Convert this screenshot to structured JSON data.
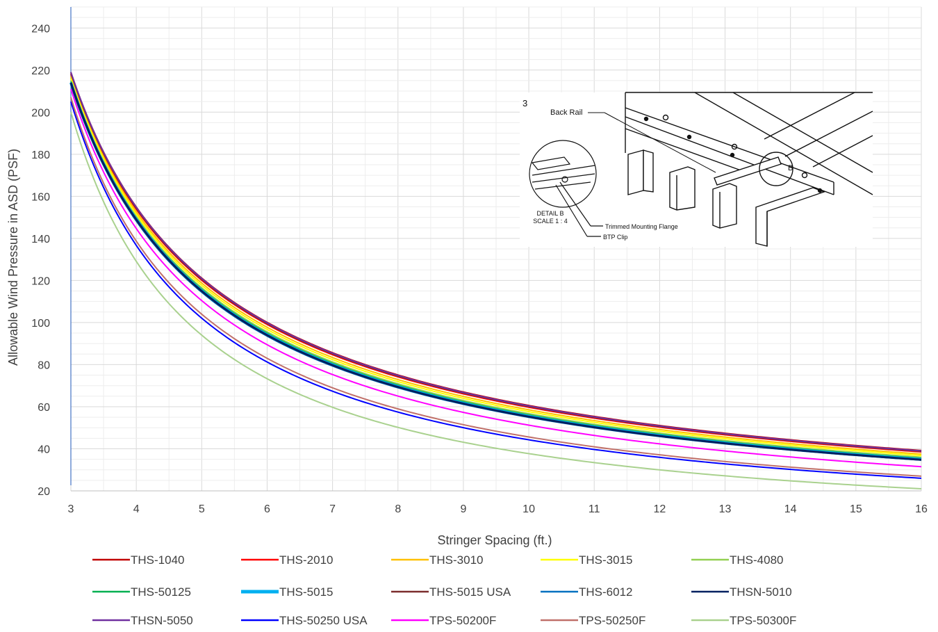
{
  "chart_data": {
    "type": "line",
    "title": "",
    "xlabel": "Stringer Spacing (ft.)",
    "ylabel": "Allowable Wind Pressure in ASD (PSF)",
    "xlim": [
      3,
      16
    ],
    "ylim": [
      20,
      250
    ],
    "xticks": [
      3,
      4,
      5,
      6,
      7,
      8,
      9,
      10,
      11,
      12,
      13,
      14,
      15,
      16
    ],
    "yticks": [
      20,
      40,
      60,
      80,
      100,
      120,
      140,
      160,
      180,
      200,
      220,
      240
    ],
    "grid": true,
    "legend_position": "bottom",
    "series": [
      {
        "name": "THS-1040",
        "color": "#C00000",
        "y3": 219,
        "y16": 39.2
      },
      {
        "name": "THS-2010",
        "color": "#FF0000",
        "y3": 218,
        "y16": 38.5
      },
      {
        "name": "THS-3010",
        "color": "#FFC000",
        "y3": 217,
        "y16": 37.5
      },
      {
        "name": "THS-3015",
        "color": "#FFFF00",
        "y3": 216,
        "y16": 36.8
      },
      {
        "name": "THS-4080",
        "color": "#92D050",
        "y3": 215,
        "y16": 36.0
      },
      {
        "name": "THS-50125",
        "color": "#00B050",
        "y3": 214.5,
        "y16": 35.5
      },
      {
        "name": "THS-5015",
        "color": "#00B0F0",
        "y3": 214,
        "y16": 35.0
      },
      {
        "name": "THS-5015 USA",
        "color": "#7B2C2C",
        "y3": 218.5,
        "y16": 38.8
      },
      {
        "name": "THS-6012",
        "color": "#0070C0",
        "y3": 213,
        "y16": 34.6
      },
      {
        "name": "THSN-5010",
        "color": "#002060",
        "y3": 214,
        "y16": 34.8
      },
      {
        "name": "THSN-5050",
        "color": "#7030A0",
        "y3": 219,
        "y16": 39.0
      },
      {
        "name": "THS-50250 USA",
        "color": "#0000FF",
        "y3": 205,
        "y16": 26.0
      },
      {
        "name": "TPS-50200F",
        "color": "#FF00FF",
        "y3": 211,
        "y16": 31.5
      },
      {
        "name": "TPS-50250F",
        "color": "#C0706A",
        "y3": 207,
        "y16": 27.0
      },
      {
        "name": "TPS-50300F",
        "color": "#A9D18E",
        "y3": 200,
        "y16": 21.0
      }
    ]
  },
  "inset": {
    "step_number": "3",
    "back_rail_label": "Back Rail",
    "detail_label": "DETAIL B",
    "scale_label": "SCALE 1 : 4",
    "flange_label": "Trimmed Mounting Flange",
    "clip_label": "BTP Clip",
    "callout_letter": "B"
  }
}
